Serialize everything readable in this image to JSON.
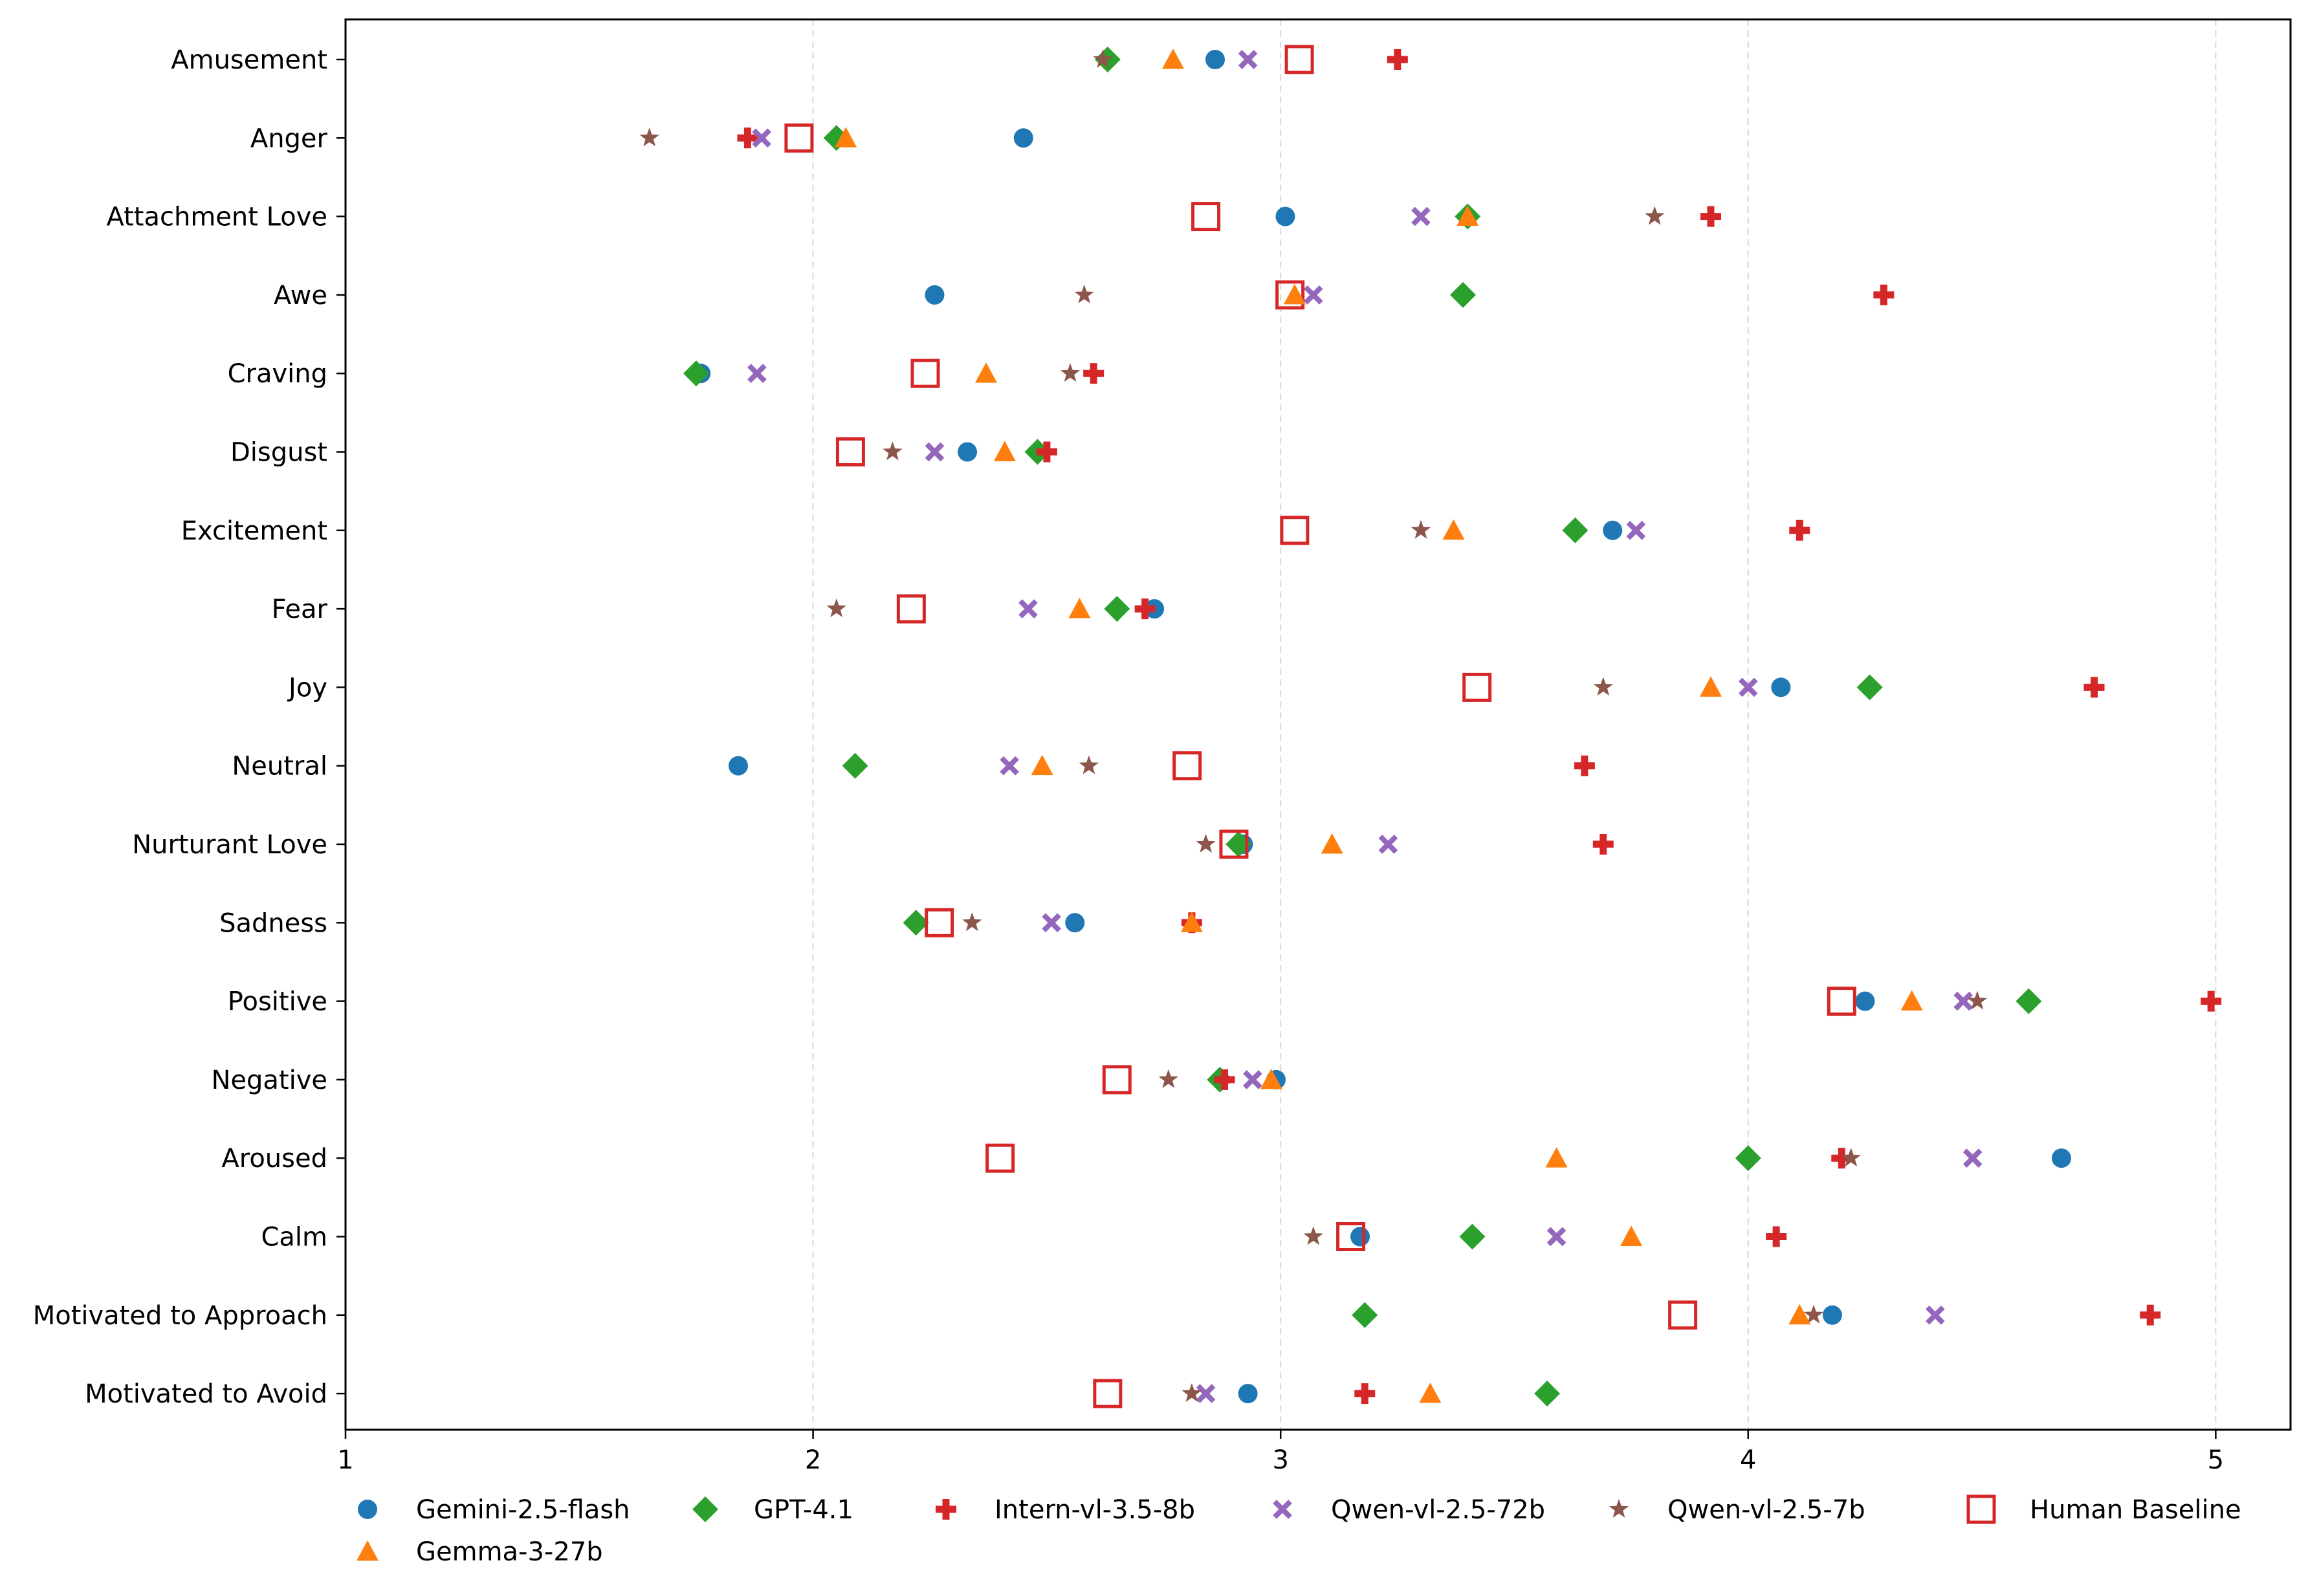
{
  "chart_data": {
    "type": "scatter",
    "orientation": "horizontal",
    "xlim": [
      1,
      5.16
    ],
    "xticks": [
      1,
      2,
      3,
      4,
      5
    ],
    "grid": "vertical dashed",
    "legend_position": "bottom",
    "categories": [
      "Amusement",
      "Anger",
      "Attachment Love",
      "Awe",
      "Craving",
      "Disgust",
      "Excitement",
      "Fear",
      "Joy",
      "Neutral",
      "Nurturant Love",
      "Sadness",
      "Positive",
      "Negative",
      "Aroused",
      "Calm",
      "Motivated to Approach",
      "Motivated to Avoid"
    ],
    "series": [
      {
        "name": "Gemini-2.5-flash",
        "marker": "circle",
        "color": "#1f77b4",
        "values": [
          2.86,
          2.45,
          3.01,
          2.26,
          1.76,
          2.33,
          3.71,
          2.73,
          4.07,
          1.84,
          2.92,
          2.56,
          4.25,
          2.99,
          4.67,
          3.17,
          4.18,
          2.93
        ]
      },
      {
        "name": "GPT-4.1",
        "marker": "diamond",
        "color": "#2ca02c",
        "values": [
          2.63,
          2.05,
          3.4,
          3.39,
          1.75,
          2.48,
          3.63,
          2.65,
          4.26,
          2.09,
          2.91,
          2.22,
          4.6,
          2.87,
          4.0,
          3.41,
          3.18,
          3.57
        ]
      },
      {
        "name": "Intern-vl-3.5-8b",
        "marker": "plus",
        "color": "#d62728",
        "values": [
          3.25,
          1.86,
          3.92,
          4.29,
          2.6,
          2.5,
          4.11,
          2.71,
          4.74,
          3.65,
          3.69,
          2.81,
          4.99,
          2.88,
          4.2,
          4.06,
          4.86,
          3.18
        ]
      },
      {
        "name": "Qwen-vl-2.5-72b",
        "marker": "x",
        "color": "#9467bd",
        "values": [
          2.93,
          1.89,
          3.3,
          3.07,
          1.88,
          2.26,
          3.76,
          2.46,
          4.0,
          2.42,
          3.23,
          2.51,
          4.46,
          2.94,
          4.48,
          3.59,
          4.4,
          2.84
        ]
      },
      {
        "name": "Qwen-vl-2.5-7b",
        "marker": "star",
        "color": "#8c564b",
        "values": [
          2.62,
          1.65,
          3.8,
          2.58,
          2.55,
          2.17,
          3.3,
          2.05,
          3.69,
          2.59,
          2.84,
          2.34,
          4.49,
          2.76,
          4.22,
          3.07,
          4.14,
          2.81
        ]
      },
      {
        "name": "Human Baseline",
        "marker": "square-open",
        "color": "#d62728",
        "values": [
          3.04,
          1.97,
          2.84,
          3.02,
          2.24,
          2.08,
          3.03,
          2.21,
          3.42,
          2.8,
          2.9,
          2.27,
          4.2,
          2.65,
          2.4,
          3.15,
          3.86,
          2.63
        ]
      },
      {
        "name": "Gemma-3-27b",
        "marker": "triangle",
        "color": "#ff7f0e",
        "values": [
          2.77,
          2.07,
          3.4,
          3.03,
          2.37,
          2.41,
          3.37,
          2.57,
          3.92,
          2.49,
          3.11,
          2.81,
          4.35,
          2.98,
          3.59,
          3.75,
          4.11,
          3.32
        ]
      }
    ]
  }
}
